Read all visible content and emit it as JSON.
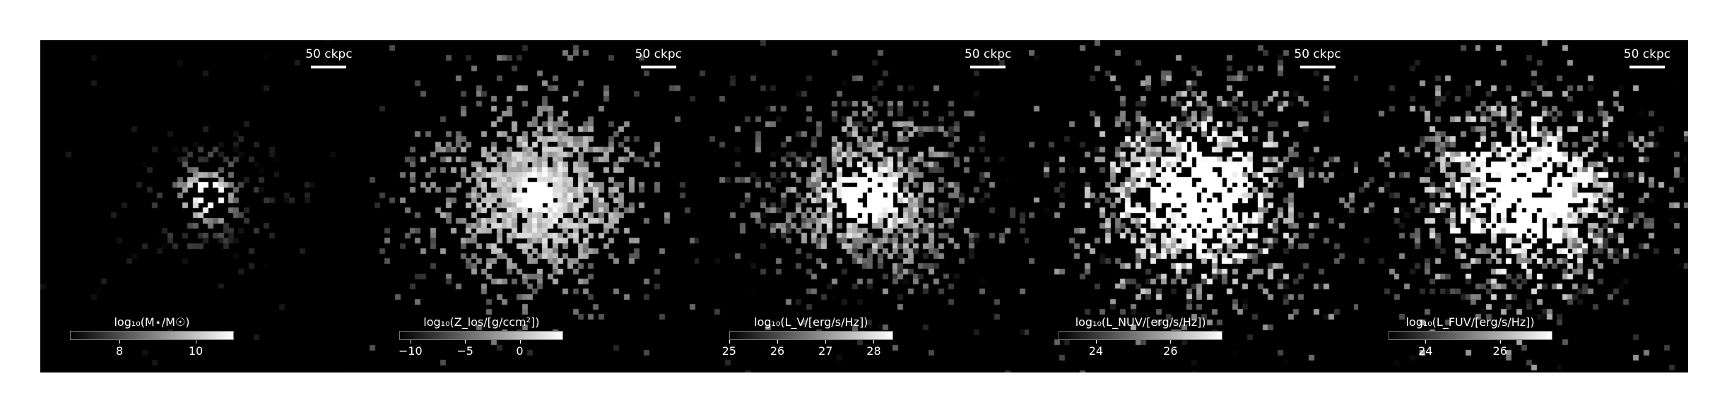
{
  "panels": [
    {
      "scalebar_label": "50 ckpc",
      "colorbar_label": "log₁₀(M⋆/M☉)",
      "colorbar_range": [
        6.7,
        11.0
      ],
      "ticks": [
        {
          "value": 8,
          "label": "8"
        },
        {
          "value": 10,
          "label": "10"
        }
      ]
    },
    {
      "scalebar_label": "50 ckpc",
      "colorbar_label": "log₁₀(Z_los/[g/ccm²])",
      "colorbar_range": [
        -11.0,
        4.0
      ],
      "ticks": [
        {
          "value": -10,
          "label": "−10"
        },
        {
          "value": -5,
          "label": "−5"
        },
        {
          "value": 0,
          "label": "0"
        }
      ]
    },
    {
      "scalebar_label": "50 ckpc",
      "colorbar_label": "log₁₀(L_V/[erg/s/Hz])",
      "colorbar_range": [
        25.0,
        28.4
      ],
      "ticks": [
        {
          "value": 25,
          "label": "25"
        },
        {
          "value": 26,
          "label": "26"
        },
        {
          "value": 27,
          "label": "27"
        },
        {
          "value": 28,
          "label": "28"
        }
      ]
    },
    {
      "scalebar_label": "50 ckpc",
      "colorbar_label": "log₁₀(L_NUV/[erg/s/Hz])",
      "colorbar_range": [
        23.0,
        27.4
      ],
      "ticks": [
        {
          "value": 24,
          "label": "24"
        },
        {
          "value": 26,
          "label": "26"
        }
      ]
    },
    {
      "scalebar_label": "50 ckpc",
      "colorbar_label": "log₁₀(L_FUV/[erg/s/Hz])",
      "colorbar_range": [
        23.0,
        27.4
      ],
      "ticks": [
        {
          "value": 24,
          "label": "24"
        },
        {
          "value": 26,
          "label": "26"
        }
      ]
    }
  ]
}
